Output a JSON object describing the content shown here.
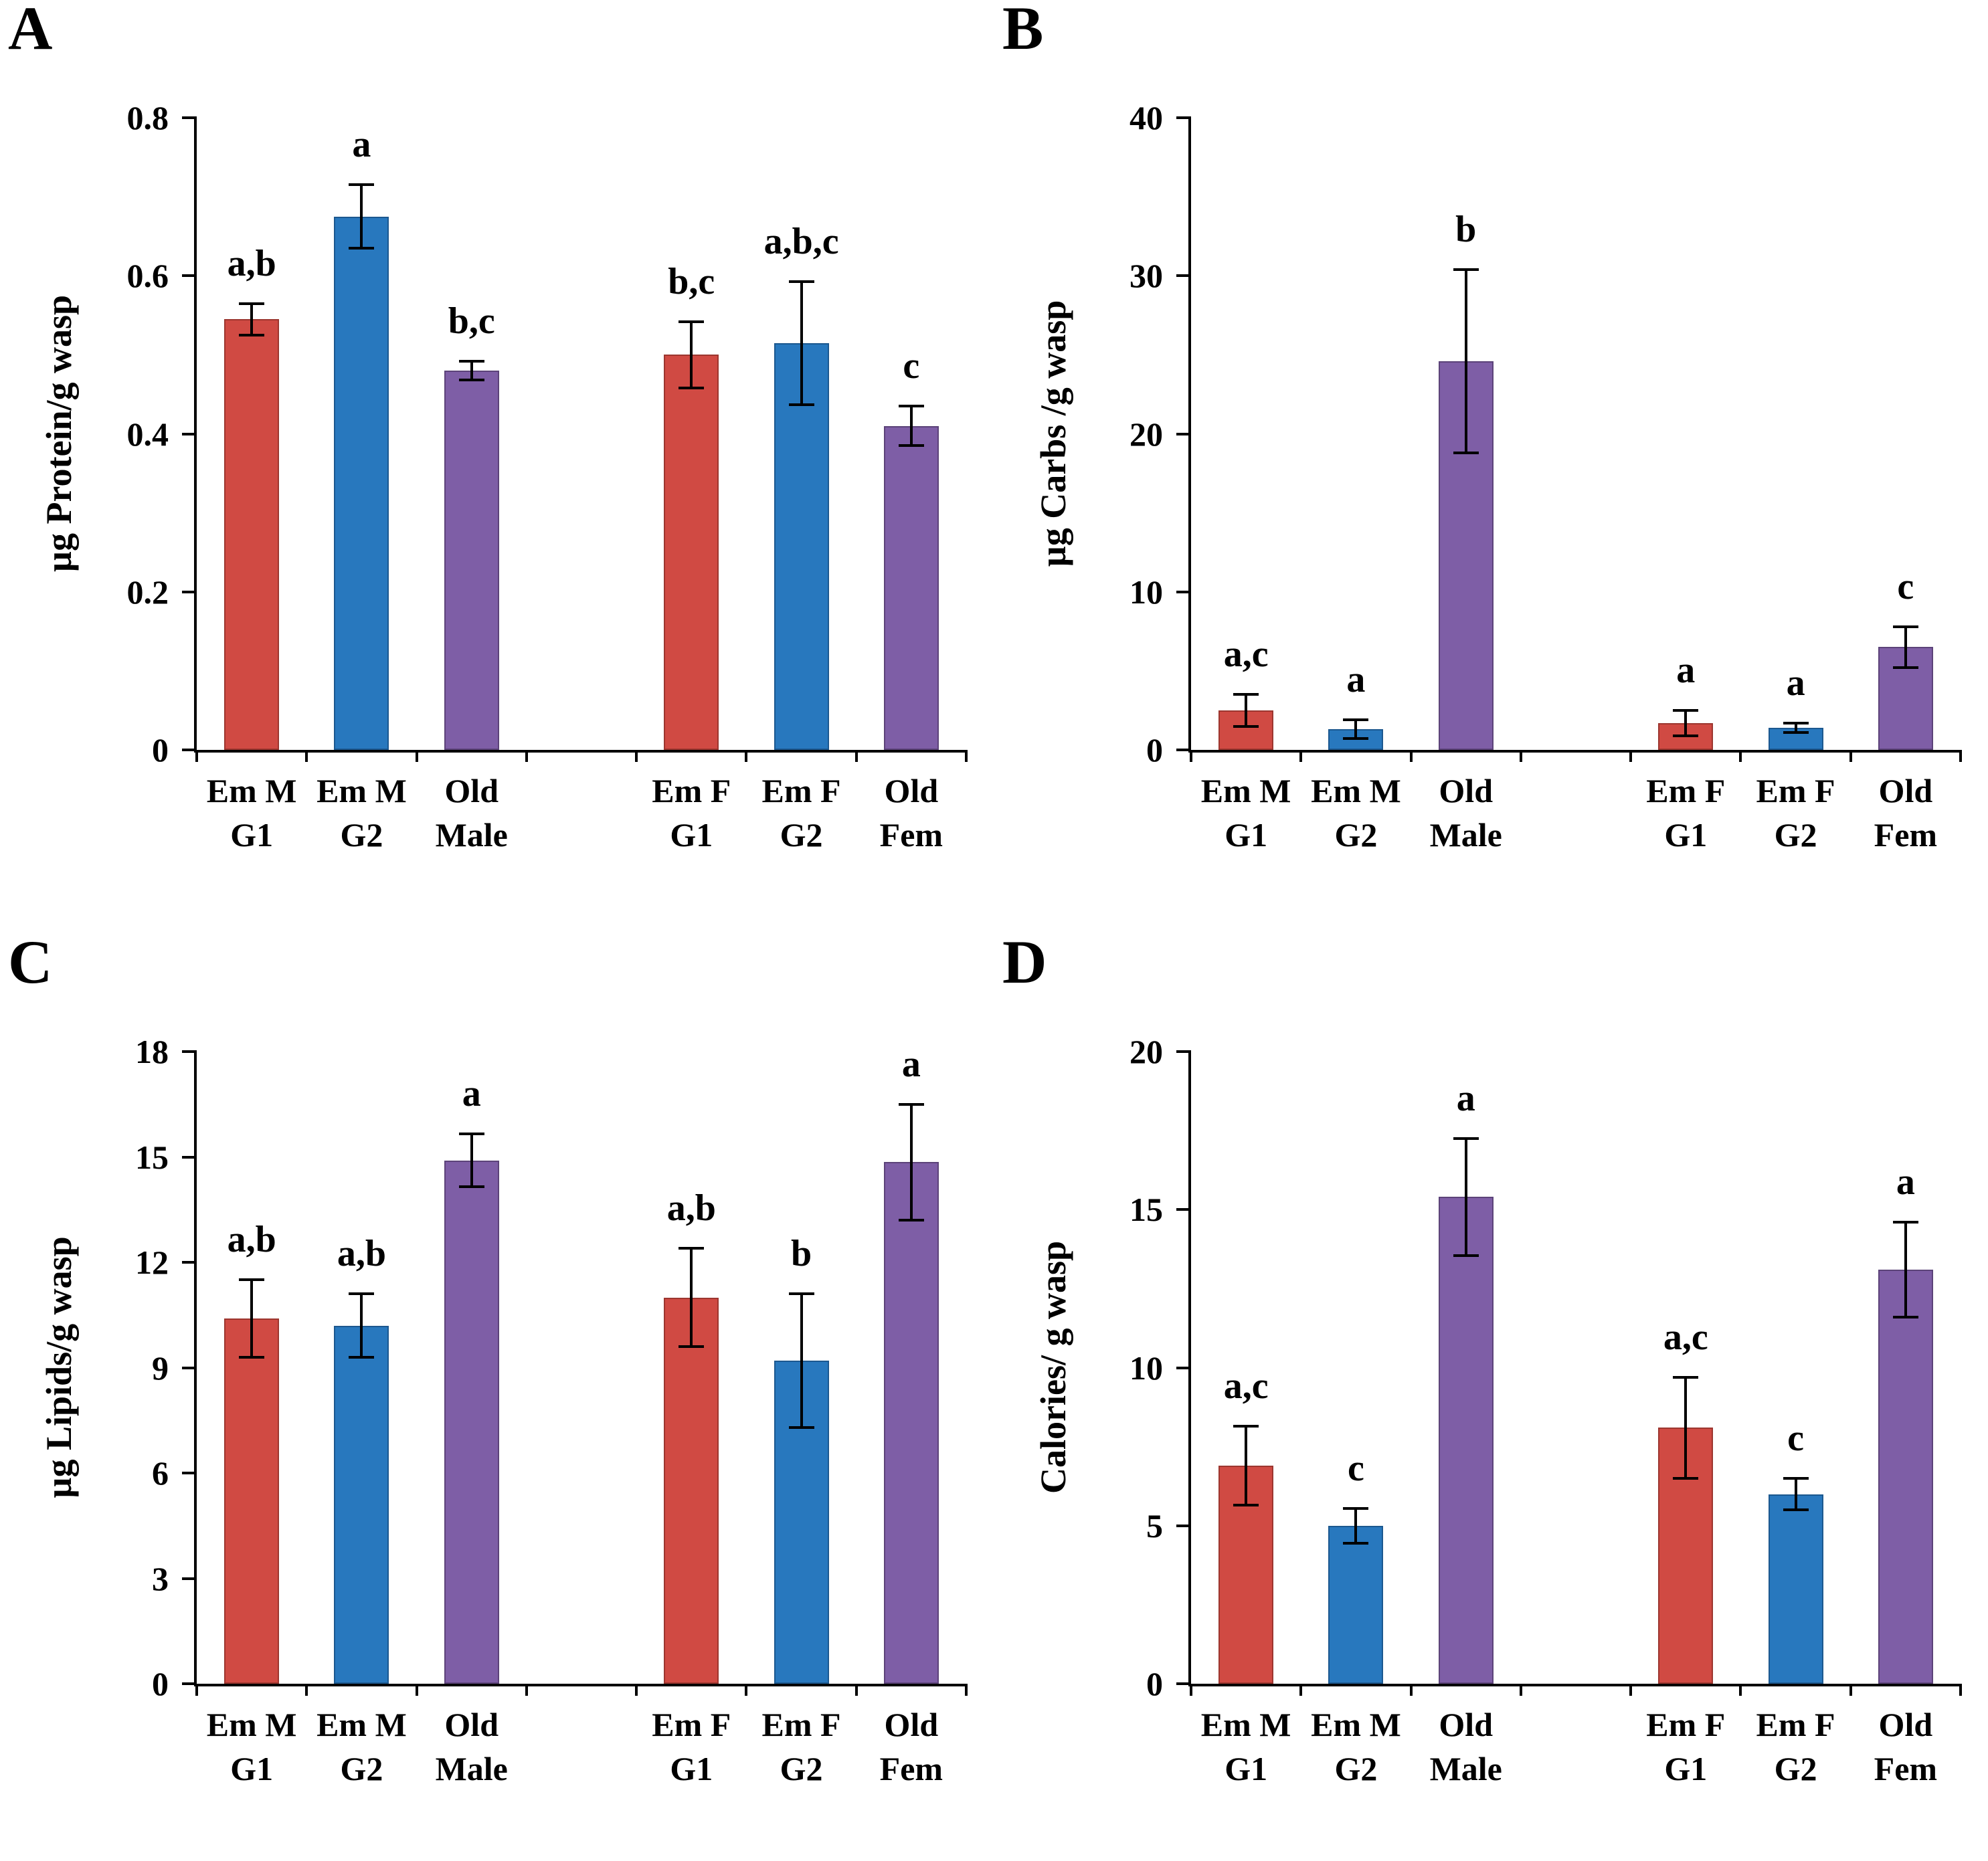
{
  "figure": {
    "background": "#ffffff",
    "palette": {
      "red": "#d04a43",
      "blue": "#2878be",
      "purple": "#7e5ea6"
    },
    "border_palette": {
      "red": "#9c362f",
      "blue": "#1c588f",
      "purple": "#5c4379"
    }
  },
  "categories_lines": [
    [
      "Em M",
      "G1"
    ],
    [
      "Em M",
      "G2"
    ],
    [
      "Old",
      "Male"
    ],
    [
      "Em F",
      "G1"
    ],
    [
      "Em F",
      "G2"
    ],
    [
      "Old",
      "Fem"
    ]
  ],
  "chart_data": [
    {
      "type": "bar",
      "panel_label": "A",
      "ylabel": "µg Protein/g wasp",
      "ylim": [
        0,
        0.8
      ],
      "yticks": [
        0,
        0.2,
        0.4,
        0.6,
        0.8
      ],
      "ytick_labels": [
        "0",
        "0.2",
        "0.4",
        "0.6",
        "0.8"
      ],
      "categories": [
        "Em M G1",
        "Em M G2",
        "Old Male",
        "Em F G1",
        "Em F G2",
        "Old Fem"
      ],
      "values": [
        0.545,
        0.675,
        0.48,
        0.5,
        0.515,
        0.41
      ],
      "errors": [
        0.02,
        0.04,
        0.012,
        0.042,
        0.078,
        0.025
      ],
      "sig_labels": [
        "a,b",
        "a",
        "b,c",
        "b,c",
        "a,b,c",
        "c"
      ],
      "bar_colors": [
        "red",
        "blue",
        "purple",
        "red",
        "blue",
        "purple"
      ],
      "legend": "none",
      "grid": "off"
    },
    {
      "type": "bar",
      "panel_label": "B",
      "ylabel": "µg Carbs /g wasp",
      "ylim": [
        0,
        40
      ],
      "yticks": [
        0,
        10,
        20,
        30,
        40
      ],
      "ytick_labels": [
        "0",
        "10",
        "20",
        "30",
        "40"
      ],
      "categories": [
        "Em M G1",
        "Em M G2",
        "Old Male",
        "Em F G1",
        "Em F G2",
        "Old Fem"
      ],
      "values": [
        2.5,
        1.3,
        24.6,
        1.7,
        1.4,
        6.5
      ],
      "errors": [
        1.0,
        0.6,
        5.8,
        0.8,
        0.3,
        1.3
      ],
      "sig_labels": [
        "a,c",
        "a",
        "b",
        "a",
        "a",
        "c"
      ],
      "bar_colors": [
        "red",
        "blue",
        "purple",
        "red",
        "blue",
        "purple"
      ],
      "legend": "none",
      "grid": "off"
    },
    {
      "type": "bar",
      "panel_label": "C",
      "ylabel": "µg Lipids/g wasp",
      "ylim": [
        0,
        18
      ],
      "yticks": [
        0,
        3,
        6,
        9,
        12,
        15,
        18
      ],
      "ytick_labels": [
        "0",
        "3",
        "6",
        "9",
        "12",
        "15",
        "18"
      ],
      "categories": [
        "Em M G1",
        "Em M G2",
        "Old Male",
        "Em F G1",
        "Em F G2",
        "Old Fem"
      ],
      "values": [
        10.4,
        10.2,
        14.9,
        11.0,
        9.2,
        14.85
      ],
      "errors": [
        1.1,
        0.9,
        0.75,
        1.4,
        1.9,
        1.65
      ],
      "sig_labels": [
        "a,b",
        "a,b",
        "a",
        "a,b",
        "b",
        "a"
      ],
      "bar_colors": [
        "red",
        "blue",
        "purple",
        "red",
        "blue",
        "purple"
      ],
      "legend": "none",
      "grid": "off"
    },
    {
      "type": "bar",
      "panel_label": "D",
      "ylabel": "Calories/ g wasp",
      "ylim": [
        0,
        20
      ],
      "yticks": [
        0,
        5,
        10,
        15,
        20
      ],
      "ytick_labels": [
        "0",
        "5",
        "10",
        "15",
        "20"
      ],
      "categories": [
        "Em M G1",
        "Em M G2",
        "Old Male",
        "Em F G1",
        "Em F G2",
        "Old Fem"
      ],
      "values": [
        6.9,
        5.0,
        15.4,
        8.1,
        6.0,
        13.1
      ],
      "errors": [
        1.25,
        0.55,
        1.85,
        1.6,
        0.5,
        1.5
      ],
      "sig_labels": [
        "a,c",
        "c",
        "a",
        "a,c",
        "c",
        "a"
      ],
      "bar_colors": [
        "red",
        "blue",
        "purple",
        "red",
        "blue",
        "purple"
      ],
      "legend": "none",
      "grid": "off"
    }
  ]
}
